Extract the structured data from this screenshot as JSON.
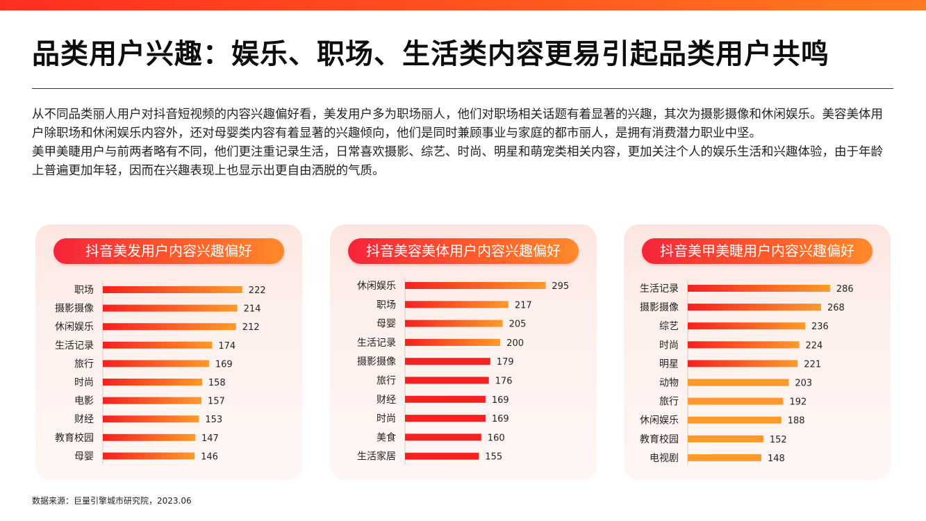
{
  "title": "品类用户兴趣：娱乐、职场、生活类内容更易引起品类用户共鸣",
  "description": [
    "从不同品类丽人用户对抖音短视频的内容兴趣偏好看，美发用户多为职场丽人，他们对职场相关话题有着显著的兴趣，其次为摄影摄像和休闲娱乐。美容美体用户除职场和休闲娱乐内容外，还对母婴类内容有着显著的兴趣倾向，他们是同时兼顾事业与家庭的都市丽人，是拥有消费潜力职业中坚。",
    "美甲美睫用户与前两者略有不同，他们更注重记录生活，日常喜欢摄影、综艺、时尚、明星和萌宠类相关内容，更加关注个人的娱乐生活和兴趣体验，由于年龄上普遍更加年轻，因而在兴趣表现上也显示出更自由洒脱的气质。"
  ],
  "source": "数据来源：巨量引擎城市研究院，2023.06",
  "colors": {
    "accent_red": "#ff2f1f",
    "bar_red": "#f52020",
    "bar_orange": "#ff9a2a"
  },
  "chart_data": [
    {
      "type": "bar",
      "orientation": "horizontal",
      "title": "抖音美发用户内容兴趣偏好",
      "categories": [
        "职场",
        "摄影摄像",
        "休闲娱乐",
        "生活记录",
        "旅行",
        "时尚",
        "电影",
        "财经",
        "教育校园",
        "母婴"
      ],
      "values": [
        222,
        214,
        212,
        174,
        169,
        158,
        157,
        153,
        147,
        146
      ],
      "bar_style": "gradient"
    },
    {
      "type": "bar",
      "orientation": "horizontal",
      "title": "抖音美容美体用户内容兴趣偏好",
      "categories": [
        "休闲娱乐",
        "职场",
        "母婴",
        "生活记录",
        "摄影摄像",
        "旅行",
        "财经",
        "时尚",
        "美食",
        "生活家居"
      ],
      "values": [
        295,
        217,
        205,
        200,
        179,
        176,
        169,
        169,
        160,
        155
      ],
      "bar_style": "gradient-top4-red-rest"
    },
    {
      "type": "bar",
      "orientation": "horizontal",
      "title": "抖音美甲美睫用户内容兴趣偏好",
      "categories": [
        "生活记录",
        "摄影摄像",
        "综艺",
        "时尚",
        "明星",
        "动物",
        "旅行",
        "休闲娱乐",
        "教育校园",
        "电视剧"
      ],
      "values": [
        286,
        268,
        236,
        224,
        221,
        203,
        192,
        188,
        152,
        148
      ],
      "bar_style": "gradient-top5-orange-rest"
    }
  ]
}
